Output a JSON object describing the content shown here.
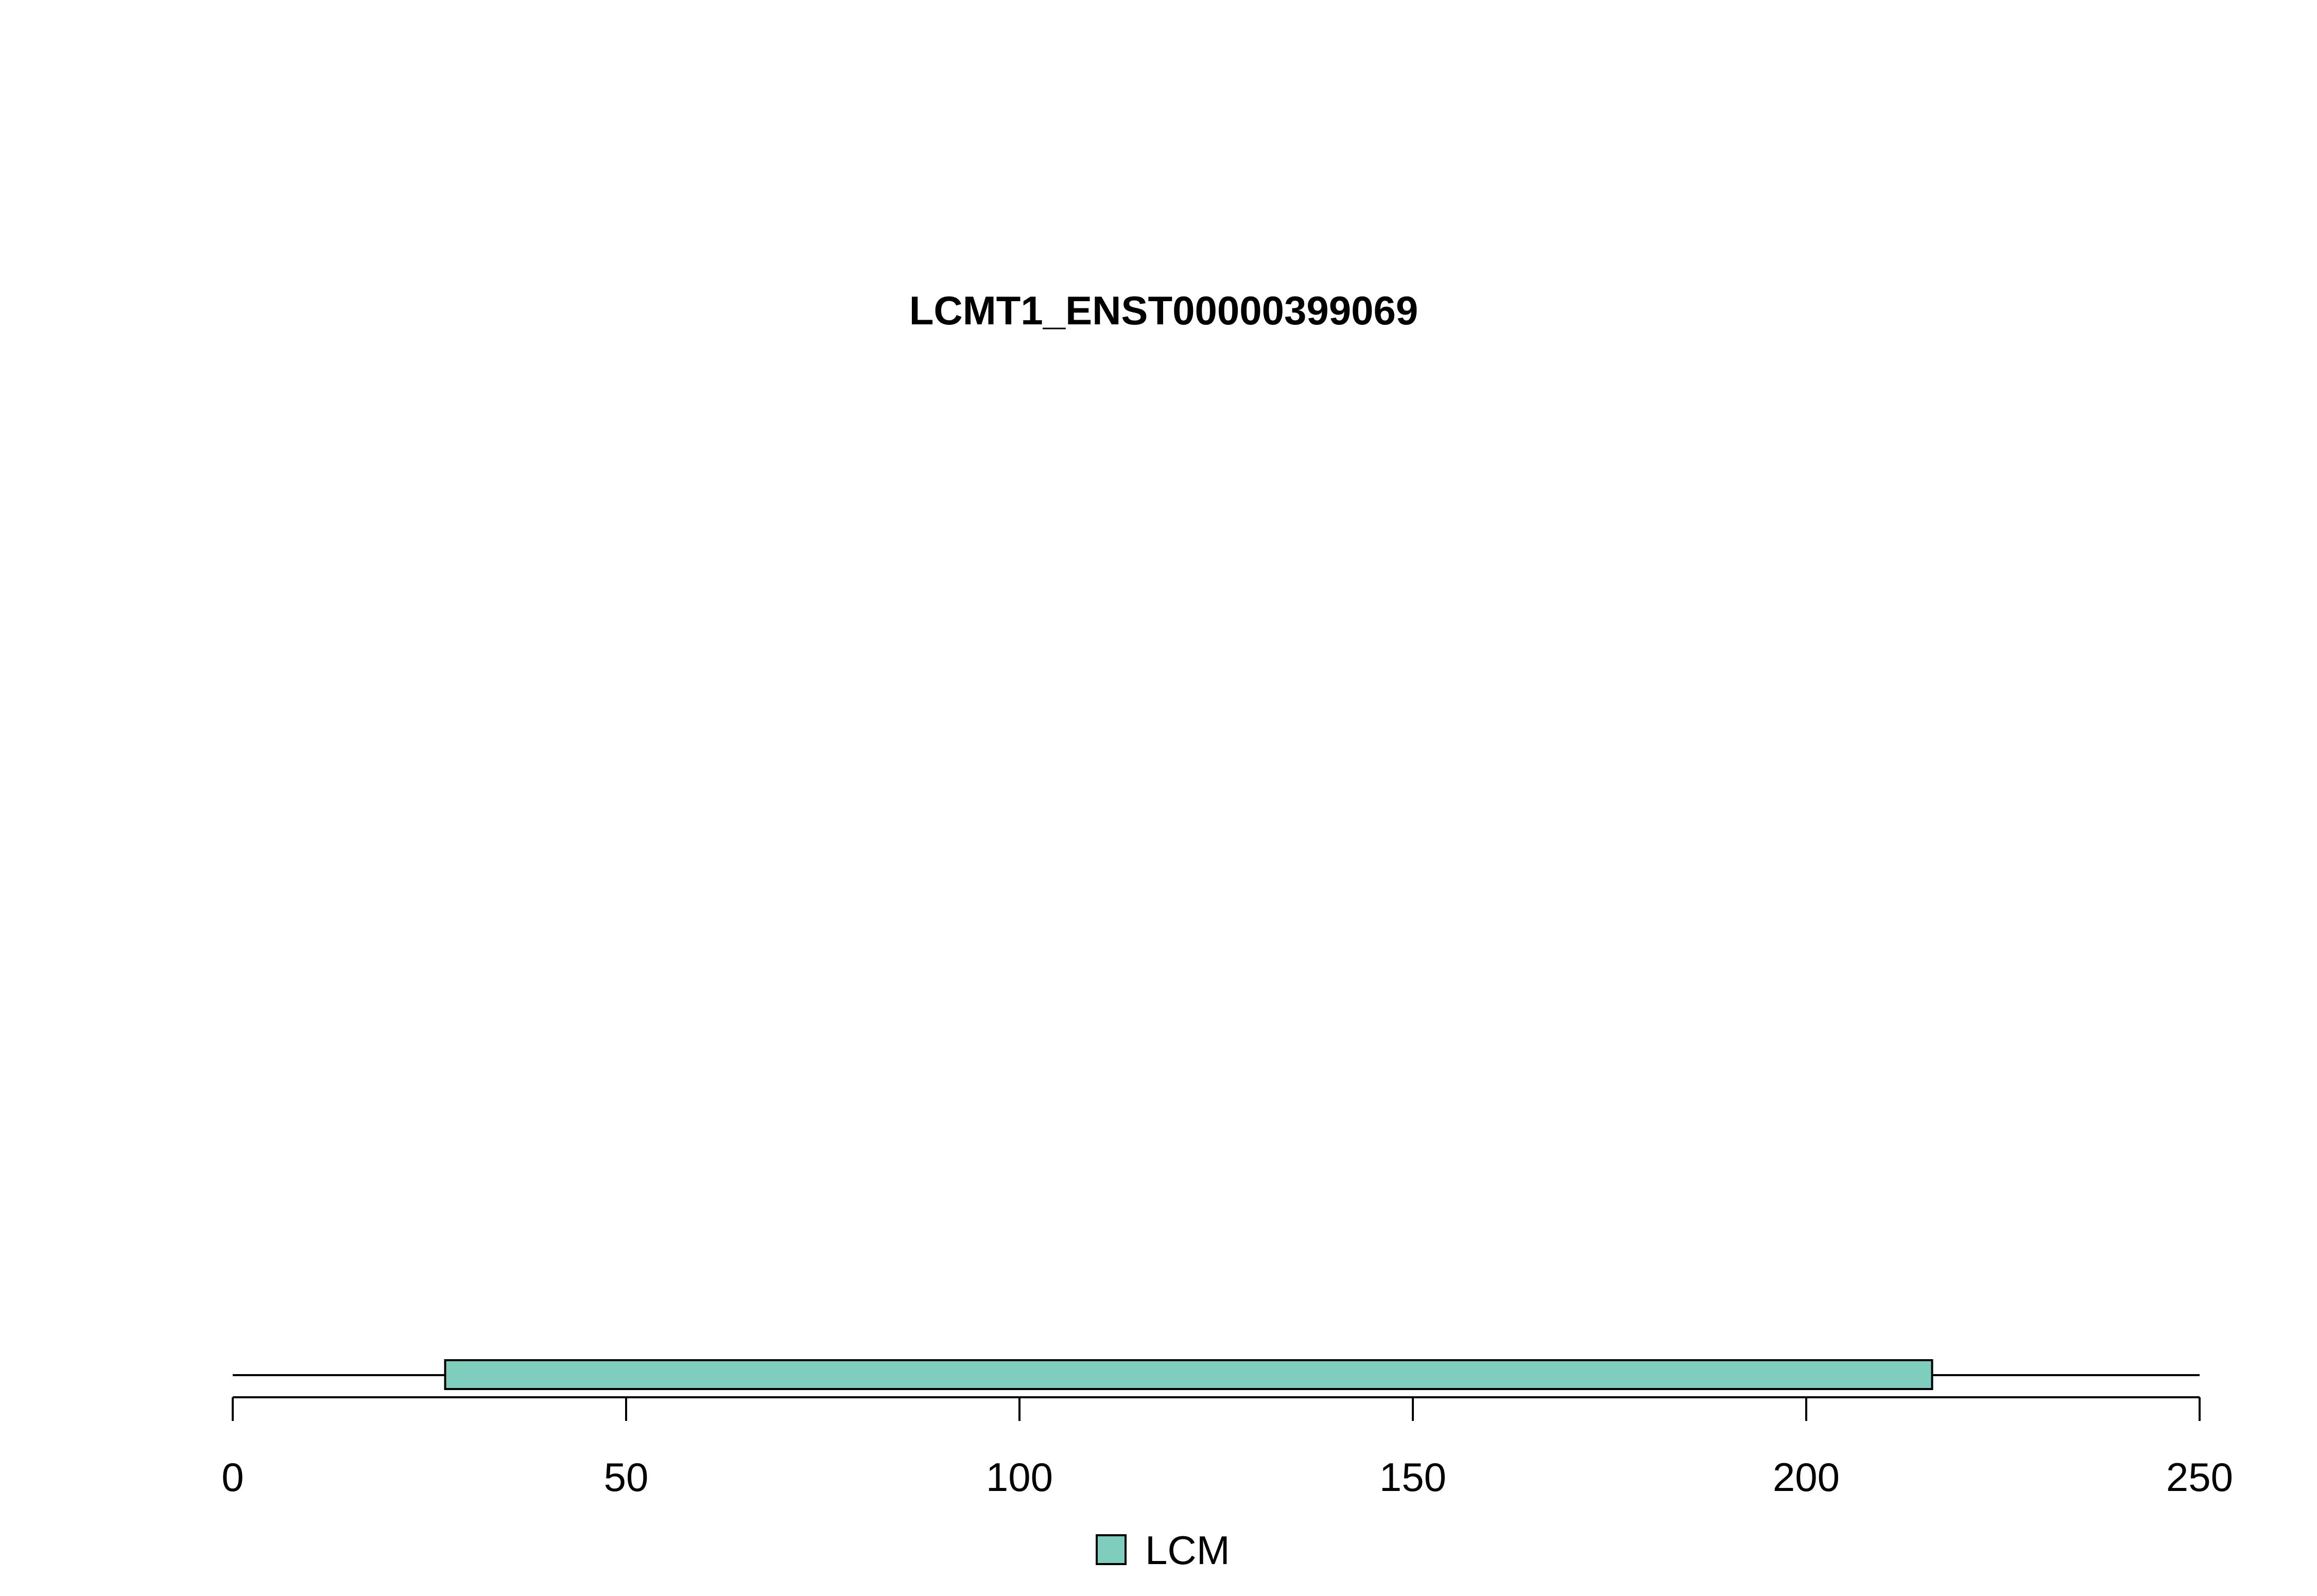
{
  "chart_data": {
    "type": "bar",
    "title": "LCMT1_ENST00000399069",
    "xlabel": "",
    "ylabel": "",
    "xlim": [
      0,
      250
    ],
    "backbone": {
      "start": 0,
      "end": 250
    },
    "ticks": [
      0,
      50,
      100,
      150,
      200,
      250
    ],
    "tick_labels": [
      "0",
      "50",
      "100",
      "150",
      "200",
      "250"
    ],
    "domains": [
      {
        "name": "LCM",
        "start": 27,
        "end": 216,
        "color": "#7fcdbb"
      }
    ],
    "legend": {
      "position": "bottom",
      "entries": [
        {
          "label": "LCM",
          "color": "#7fcdbb"
        }
      ]
    },
    "grid": false
  }
}
